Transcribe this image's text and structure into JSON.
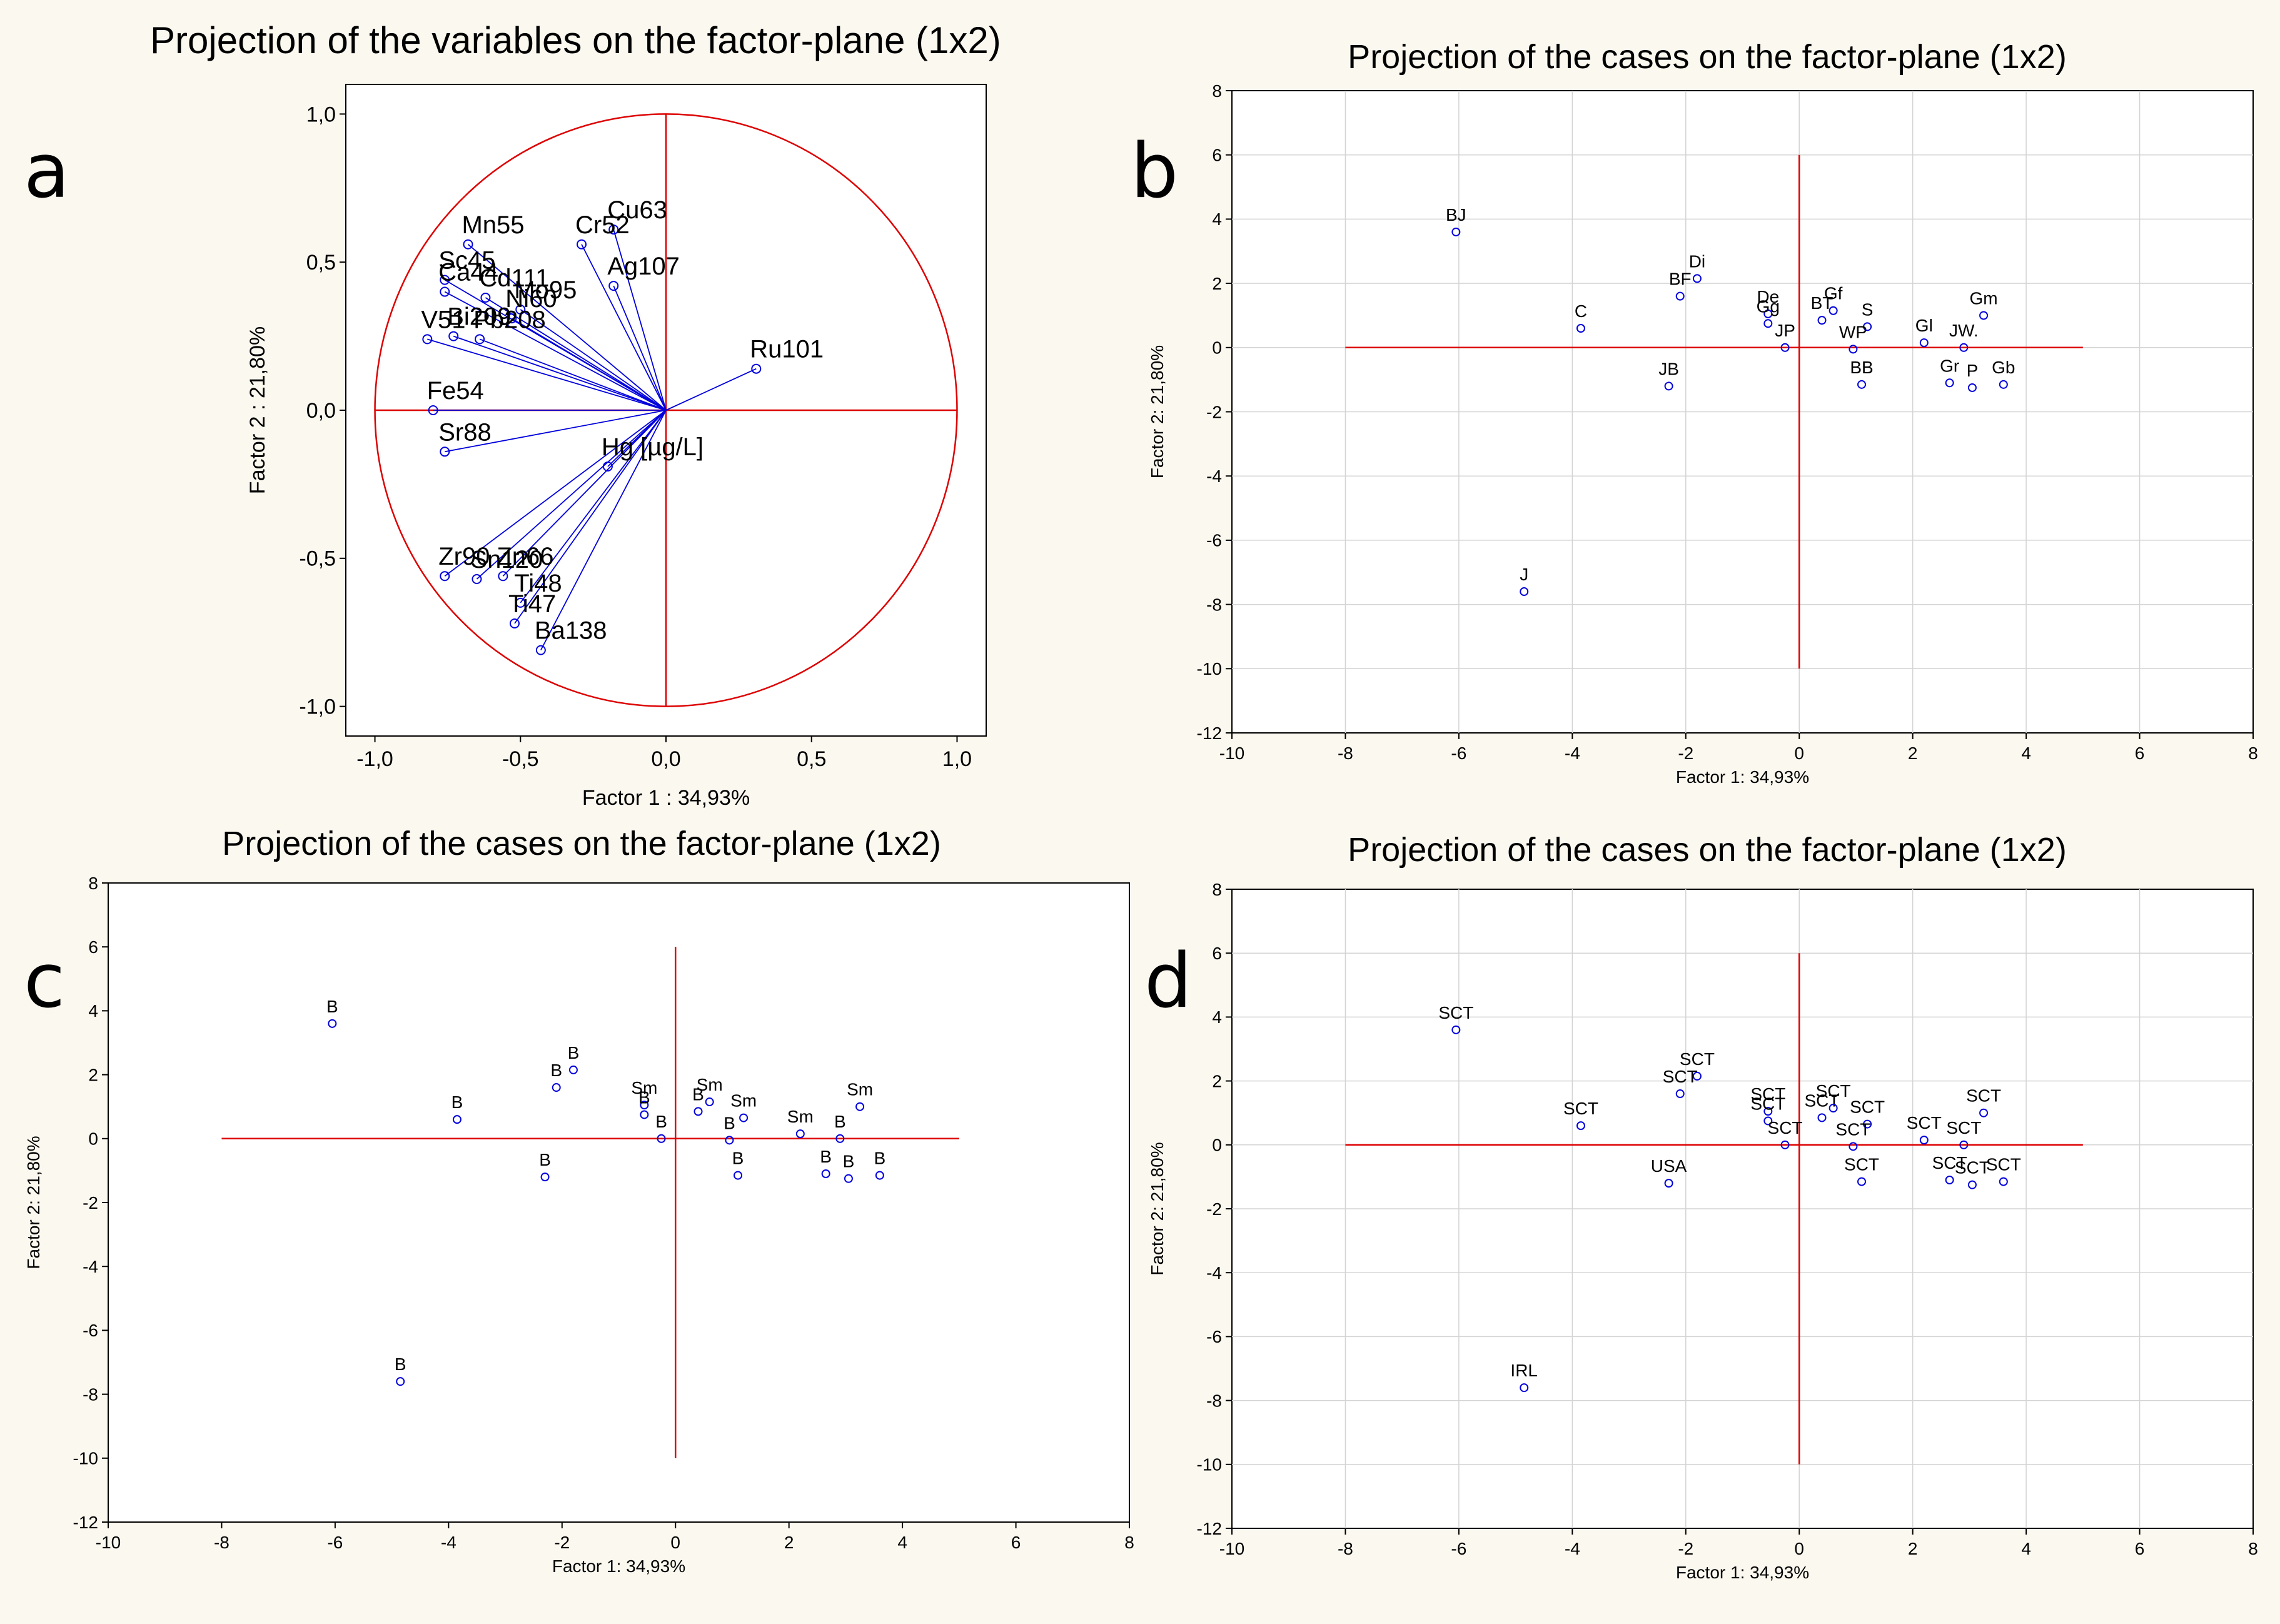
{
  "colors": {
    "frame_bg": "#fbf8ef",
    "plot_bg": "#ffffff",
    "points": "#0000dd",
    "axes_lines": "#dd0000",
    "grid": "#d4d4d4"
  },
  "panels": {
    "a": "a",
    "b": "b",
    "c": "c",
    "d": "d"
  },
  "chart_data": [
    {
      "id": "a",
      "type": "scatter",
      "title": "Projection of the variables on the factor-plane (1x2)",
      "xlabel": "Factor 1 : 34,93%",
      "ylabel": "Factor 2 : 21,80%",
      "xlim": [
        -1.1,
        1.1
      ],
      "ylim": [
        -1.1,
        1.1
      ],
      "xticks": [
        -1.0,
        -0.5,
        0.0,
        0.5,
        1.0
      ],
      "yticks": [
        -1.0,
        -0.5,
        0.0,
        0.5,
        1.0
      ],
      "xtick_labels": [
        "-1,0",
        "-0,5",
        "0,0",
        "0,5",
        "1,0"
      ],
      "ytick_labels": [
        "-1,0",
        "-0,5",
        "0,0",
        "0,5",
        "1,0"
      ],
      "grid": false,
      "unit_circle": true,
      "vectors_from_origin": true,
      "points": [
        {
          "label": "Cu63",
          "x": -0.18,
          "y": 0.61
        },
        {
          "label": "Cr52",
          "x": -0.29,
          "y": 0.56
        },
        {
          "label": "Ag107",
          "x": -0.18,
          "y": 0.42
        },
        {
          "label": "Mn55",
          "x": -0.68,
          "y": 0.56
        },
        {
          "label": "Sc45",
          "x": -0.76,
          "y": 0.44
        },
        {
          "label": "Ca44",
          "x": -0.76,
          "y": 0.4
        },
        {
          "label": "Cd111",
          "x": -0.62,
          "y": 0.38
        },
        {
          "label": "Mo95",
          "x": -0.5,
          "y": 0.34
        },
        {
          "label": "Ni60",
          "x": -0.53,
          "y": 0.31
        },
        {
          "label": "Bi209",
          "x": -0.73,
          "y": 0.25
        },
        {
          "label": "V51",
          "x": -0.82,
          "y": 0.24
        },
        {
          "label": "Pb208",
          "x": -0.64,
          "y": 0.24
        },
        {
          "label": "Ru101",
          "x": 0.31,
          "y": 0.14
        },
        {
          "label": "Fe54",
          "x": -0.8,
          "y": 0.0
        },
        {
          "label": "Sr88",
          "x": -0.76,
          "y": -0.14
        },
        {
          "label": "Hg [µg/L]",
          "x": -0.2,
          "y": -0.19
        },
        {
          "label": "Zr90",
          "x": -0.76,
          "y": -0.56
        },
        {
          "label": "Sn120",
          "x": -0.65,
          "y": -0.57
        },
        {
          "label": "Zn66",
          "x": -0.56,
          "y": -0.56
        },
        {
          "label": "Ti48",
          "x": -0.5,
          "y": -0.65
        },
        {
          "label": "Ti47",
          "x": -0.52,
          "y": -0.72
        },
        {
          "label": "Ba138",
          "x": -0.43,
          "y": -0.81
        }
      ]
    },
    {
      "id": "b",
      "type": "scatter",
      "title": "Projection of the cases on the factor-plane (1x2)",
      "xlabel": "Factor 1: 34,93%",
      "ylabel": "Factor 2: 21,80%",
      "xlim": [
        -10,
        8
      ],
      "ylim": [
        -12,
        8
      ],
      "xticks": [
        -10,
        -8,
        -6,
        -4,
        -2,
        0,
        2,
        4,
        6,
        8
      ],
      "yticks": [
        -12,
        -10,
        -8,
        -6,
        -4,
        -2,
        0,
        2,
        4,
        6,
        8
      ],
      "grid": true,
      "reference_lines": {
        "x_from": -8,
        "x_to": 5,
        "y_from": -10,
        "y_to": 6
      },
      "points": [
        {
          "label": "BJ",
          "x": -6.05,
          "y": 3.6
        },
        {
          "label": "J",
          "x": -4.85,
          "y": -7.6
        },
        {
          "label": "C",
          "x": -3.85,
          "y": 0.6
        },
        {
          "label": "JB",
          "x": -2.3,
          "y": -1.2
        },
        {
          "label": "BF",
          "x": -2.1,
          "y": 1.6
        },
        {
          "label": "Di",
          "x": -1.8,
          "y": 2.15
        },
        {
          "label": "De",
          "x": -0.55,
          "y": 1.05
        },
        {
          "label": "Gg",
          "x": -0.55,
          "y": 0.75
        },
        {
          "label": "JP",
          "x": -0.25,
          "y": 0.0
        },
        {
          "label": "BT",
          "x": 0.4,
          "y": 0.85
        },
        {
          "label": "Gf",
          "x": 0.6,
          "y": 1.15
        },
        {
          "label": "S",
          "x": 1.2,
          "y": 0.65
        },
        {
          "label": "WP",
          "x": 0.95,
          "y": -0.05
        },
        {
          "label": "BB",
          "x": 1.1,
          "y": -1.15
        },
        {
          "label": "Gl",
          "x": 2.2,
          "y": 0.15
        },
        {
          "label": "JW.",
          "x": 2.9,
          "y": 0.0
        },
        {
          "label": "Gm",
          "x": 3.25,
          "y": 1.0
        },
        {
          "label": "Gr",
          "x": 2.65,
          "y": -1.1
        },
        {
          "label": "P",
          "x": 3.05,
          "y": -1.25
        },
        {
          "label": "Gb",
          "x": 3.6,
          "y": -1.15
        }
      ]
    },
    {
      "id": "c",
      "type": "scatter",
      "title": "Projection of the cases on the factor-plane (1x2)",
      "xlabel": "Factor 1: 34,93%",
      "ylabel": "Factor 2: 21,80%",
      "xlim": [
        -10,
        8
      ],
      "ylim": [
        -12,
        8
      ],
      "xticks": [
        -10,
        -8,
        -6,
        -4,
        -2,
        0,
        2,
        4,
        6,
        8
      ],
      "yticks": [
        -12,
        -10,
        -8,
        -6,
        -4,
        -2,
        0,
        2,
        4,
        6,
        8
      ],
      "grid": false,
      "reference_lines": {
        "x_from": -8,
        "x_to": 5,
        "y_from": -10,
        "y_to": 6
      },
      "points": [
        {
          "label": "B",
          "x": -6.05,
          "y": 3.6
        },
        {
          "label": "B",
          "x": -4.85,
          "y": -7.6
        },
        {
          "label": "B",
          "x": -3.85,
          "y": 0.6
        },
        {
          "label": "B",
          "x": -2.3,
          "y": -1.2
        },
        {
          "label": "B",
          "x": -2.1,
          "y": 1.6
        },
        {
          "label": "B",
          "x": -1.8,
          "y": 2.15
        },
        {
          "label": "Sm",
          "x": -0.55,
          "y": 1.05
        },
        {
          "label": "B",
          "x": -0.55,
          "y": 0.75
        },
        {
          "label": "B",
          "x": -0.25,
          "y": 0.0
        },
        {
          "label": "B",
          "x": 0.4,
          "y": 0.85
        },
        {
          "label": "Sm",
          "x": 0.6,
          "y": 1.15
        },
        {
          "label": "Sm",
          "x": 1.2,
          "y": 0.65
        },
        {
          "label": "B",
          "x": 0.95,
          "y": -0.05
        },
        {
          "label": "B",
          "x": 1.1,
          "y": -1.15
        },
        {
          "label": "Sm",
          "x": 2.2,
          "y": 0.15
        },
        {
          "label": "B",
          "x": 2.9,
          "y": 0.0
        },
        {
          "label": "Sm",
          "x": 3.25,
          "y": 1.0
        },
        {
          "label": "B",
          "x": 2.65,
          "y": -1.1
        },
        {
          "label": "B",
          "x": 3.05,
          "y": -1.25
        },
        {
          "label": "B",
          "x": 3.6,
          "y": -1.15
        }
      ]
    },
    {
      "id": "d",
      "type": "scatter",
      "title": "Projection of the cases on the factor-plane (1x2)",
      "xlabel": "Factor 1: 34,93%",
      "ylabel": "Factor 2: 21,80%",
      "xlim": [
        -10,
        8
      ],
      "ylim": [
        -12,
        8
      ],
      "xticks": [
        -10,
        -8,
        -6,
        -4,
        -2,
        0,
        2,
        4,
        6,
        8
      ],
      "yticks": [
        -12,
        -10,
        -8,
        -6,
        -4,
        -2,
        0,
        2,
        4,
        6,
        8
      ],
      "grid": true,
      "reference_lines": {
        "x_from": -8,
        "x_to": 5,
        "y_from": -10,
        "y_to": 6
      },
      "points": [
        {
          "label": "SCT",
          "x": -6.05,
          "y": 3.6
        },
        {
          "label": "IRL",
          "x": -4.85,
          "y": -7.6
        },
        {
          "label": "SCT",
          "x": -3.85,
          "y": 0.6
        },
        {
          "label": "USA",
          "x": -2.3,
          "y": -1.2
        },
        {
          "label": "SCT",
          "x": -2.1,
          "y": 1.6
        },
        {
          "label": "SCT",
          "x": -1.8,
          "y": 2.15
        },
        {
          "label": "SCT",
          "x": -0.55,
          "y": 1.05
        },
        {
          "label": "SCT",
          "x": -0.55,
          "y": 0.75
        },
        {
          "label": "SCT",
          "x": -0.25,
          "y": 0.0
        },
        {
          "label": "SCT",
          "x": 0.4,
          "y": 0.85
        },
        {
          "label": "SCT",
          "x": 0.6,
          "y": 1.15
        },
        {
          "label": "SCT",
          "x": 1.2,
          "y": 0.65
        },
        {
          "label": "SCT",
          "x": 0.95,
          "y": -0.05
        },
        {
          "label": "SCT",
          "x": 1.1,
          "y": -1.15
        },
        {
          "label": "SCT",
          "x": 2.2,
          "y": 0.15
        },
        {
          "label": "SCT",
          "x": 2.9,
          "y": 0.0
        },
        {
          "label": "SCT",
          "x": 3.25,
          "y": 1.0
        },
        {
          "label": "SCT",
          "x": 2.65,
          "y": -1.1
        },
        {
          "label": "SCT",
          "x": 3.05,
          "y": -1.25
        },
        {
          "label": "SCT",
          "x": 3.6,
          "y": -1.15
        }
      ]
    }
  ]
}
